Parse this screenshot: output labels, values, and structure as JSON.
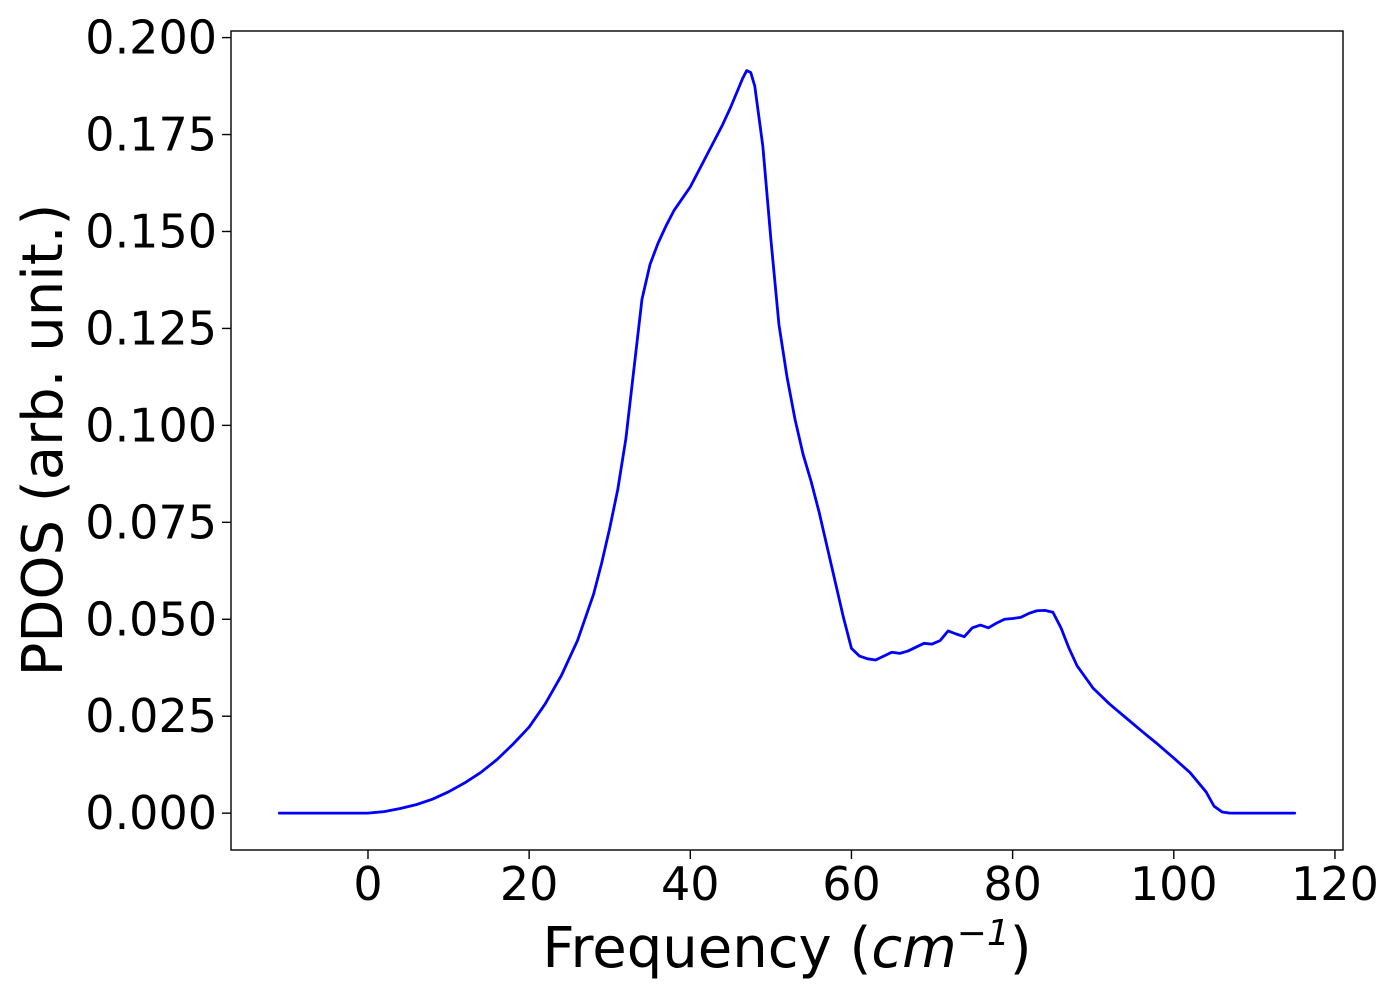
{
  "chart_data": {
    "type": "line",
    "xlabel": "Frequency",
    "xlabel_unit_base": "cm",
    "xlabel_unit_exp": "−1",
    "ylabel": "PDOS (arb. unit.)",
    "xlim": [
      -17,
      121
    ],
    "ylim": [
      -0.0095,
      0.2017
    ],
    "xticks": [
      0,
      20,
      40,
      60,
      80,
      100,
      120
    ],
    "xtick_labels": [
      "0",
      "20",
      "40",
      "60",
      "80",
      "100",
      "120"
    ],
    "yticks": [
      0.0,
      0.025,
      0.05,
      0.075,
      0.1,
      0.125,
      0.15,
      0.175,
      0.2
    ],
    "ytick_labels": [
      "0.000",
      "0.025",
      "0.050",
      "0.075",
      "0.100",
      "0.125",
      "0.150",
      "0.175",
      "0.200"
    ],
    "grid": false,
    "series": [
      {
        "color": "#0000ff",
        "x": [
          -11,
          0,
          2,
          4,
          6,
          8,
          10,
          12,
          14,
          16,
          18,
          20,
          22,
          24,
          26,
          28,
          29,
          30,
          31,
          32,
          33,
          34,
          35,
          36,
          37,
          38,
          39,
          40,
          41,
          42,
          43,
          44,
          45,
          46,
          46.5,
          47,
          47.5,
          48,
          49,
          50,
          51,
          52,
          53,
          54,
          55,
          56,
          57,
          58,
          59,
          60,
          61,
          62,
          63,
          64,
          65,
          66,
          67,
          68,
          69,
          70,
          71,
          72,
          73,
          74,
          75,
          76,
          77,
          78,
          79,
          80,
          81,
          82,
          83,
          84,
          85,
          86,
          87,
          88,
          90,
          92,
          94,
          96,
          98,
          100,
          102,
          104,
          105,
          106,
          107,
          108,
          110,
          115
        ],
        "y": [
          0.0,
          0.0,
          0.0004,
          0.0012,
          0.0022,
          0.0036,
          0.0055,
          0.0078,
          0.0105,
          0.0138,
          0.0178,
          0.0222,
          0.0282,
          0.0355,
          0.0445,
          0.0565,
          0.0645,
          0.0735,
          0.0835,
          0.0965,
          0.1145,
          0.1325,
          0.1415,
          0.147,
          0.1515,
          0.1555,
          0.1585,
          0.1615,
          0.1655,
          0.1695,
          0.1735,
          0.1775,
          0.182,
          0.187,
          0.1895,
          0.1915,
          0.191,
          0.1875,
          0.172,
          0.148,
          0.126,
          0.1125,
          0.1015,
          0.0925,
          0.0855,
          0.0775,
          0.0685,
          0.0595,
          0.0505,
          0.0425,
          0.0405,
          0.0398,
          0.0395,
          0.0405,
          0.0415,
          0.0412,
          0.0418,
          0.0428,
          0.0438,
          0.0436,
          0.0445,
          0.047,
          0.0462,
          0.0455,
          0.0478,
          0.0485,
          0.0478,
          0.049,
          0.05,
          0.0502,
          0.0505,
          0.0515,
          0.0522,
          0.0523,
          0.0518,
          0.0478,
          0.0425,
          0.038,
          0.0322,
          0.0282,
          0.0247,
          0.0212,
          0.0178,
          0.0142,
          0.0105,
          0.0055,
          0.0018,
          0.0003,
          0.0,
          0.0,
          0.0,
          0.0
        ]
      }
    ]
  }
}
